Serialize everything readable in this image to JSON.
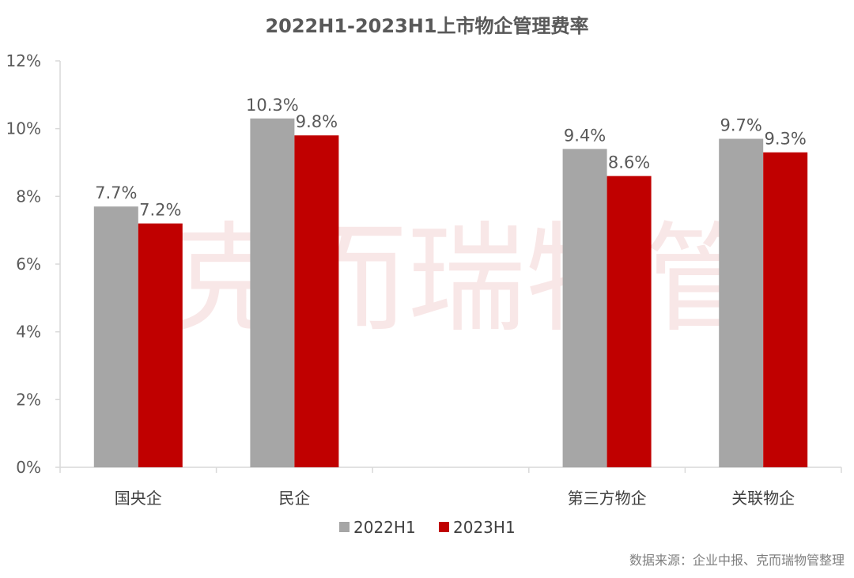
{
  "chart_data": {
    "type": "bar",
    "title": "2022H1-2023H1上市物企管理费率",
    "categories": [
      "国央企",
      "民企",
      "",
      "第三方物企",
      "关联物企"
    ],
    "series": [
      {
        "name": "2022H1",
        "color": "#a6a6a6",
        "values": [
          7.7,
          10.3,
          null,
          9.4,
          9.7
        ],
        "labels": [
          "7.7%",
          "10.3%",
          "",
          "9.4%",
          "9.7%"
        ]
      },
      {
        "name": "2023H1",
        "color": "#c00000",
        "values": [
          7.2,
          9.8,
          null,
          8.6,
          9.3
        ],
        "labels": [
          "7.2%",
          "9.8%",
          "",
          "8.6%",
          "9.3%"
        ]
      }
    ],
    "ylim": [
      0,
      12
    ],
    "yticks": [
      0,
      2,
      4,
      6,
      8,
      10,
      12
    ],
    "ytick_labels": [
      "0%",
      "2%",
      "4%",
      "6%",
      "8%",
      "10%",
      "12%"
    ],
    "grid": false,
    "legend_position": "bottom"
  },
  "watermark": "克而瑞物管",
  "source_note": "数据来源：企业中报、克而瑞物管整理"
}
